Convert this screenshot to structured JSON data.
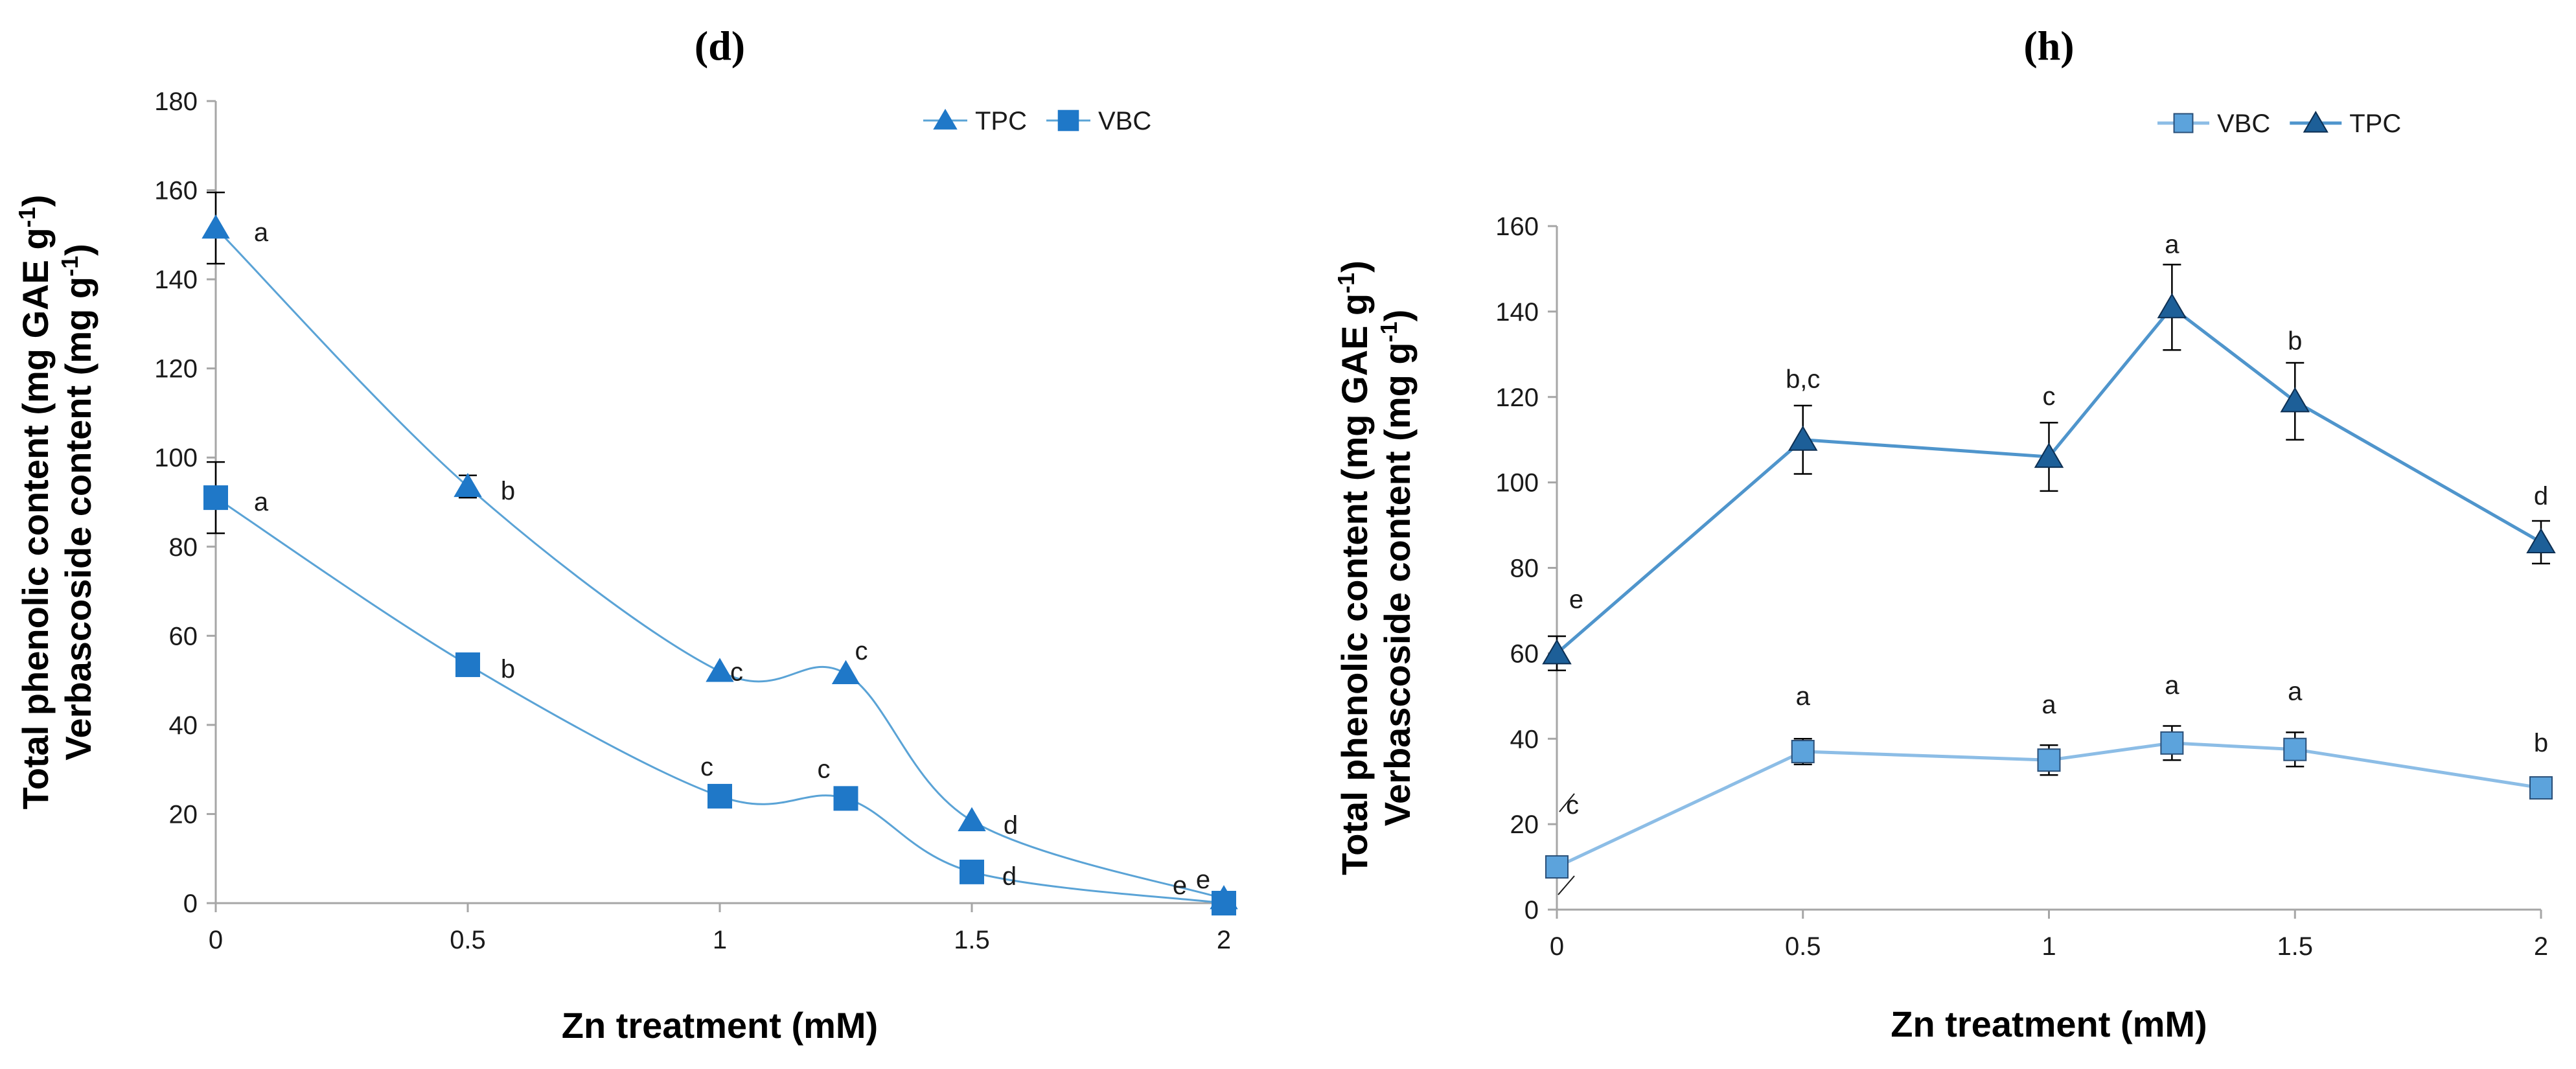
{
  "chart_data": [
    {
      "type": "line",
      "panel": "(d)",
      "xlabel": "Zn treatment (mM)",
      "ylabel_lines": [
        "Total phenolic content (mg GAE g⁻¹)",
        "Verbascoside content (mg g⁻¹)"
      ],
      "xlim": [
        0,
        2
      ],
      "ylim": [
        0,
        180
      ],
      "xticks": [
        "0",
        "0.5",
        "1",
        "1.5",
        "2"
      ],
      "yticks": [
        "0",
        "20",
        "40",
        "60",
        "80",
        "100",
        "120",
        "140",
        "160",
        "180"
      ],
      "grid": false,
      "smooth": true,
      "legend_position": "top-right",
      "legend_order": [
        "TPC",
        "VBC"
      ],
      "series": [
        {
          "name": "TPC",
          "marker": "triangle",
          "x": [
            0,
            0.5,
            1,
            1.25,
            1.5,
            2
          ],
          "values": [
            151.5,
            93.5,
            52,
            51.5,
            18.5,
            1
          ],
          "error": [
            8,
            2.5,
            0,
            0,
            0,
            0
          ],
          "letters": [
            "a",
            "b",
            "c",
            "c",
            "d",
            "e"
          ]
        },
        {
          "name": "VBC",
          "marker": "square",
          "x": [
            0,
            0.5,
            1,
            1.25,
            1.5,
            2
          ],
          "values": [
            91,
            53.5,
            24,
            23.5,
            7,
            0
          ],
          "error": [
            8,
            0,
            0,
            0,
            0,
            0
          ],
          "letters": [
            "a",
            "b",
            "c",
            "c",
            "d",
            "e"
          ]
        }
      ]
    },
    {
      "type": "line",
      "panel": "(h)",
      "xlabel": "Zn treatment (mM)",
      "ylabel_lines": [
        "Total phenolic content (mg GAE g⁻¹)",
        "Verbascoside content (mg g⁻¹)"
      ],
      "xlim": [
        0,
        2
      ],
      "ylim": [
        0,
        160
      ],
      "xticks": [
        "0",
        "0.5",
        "1",
        "1.5",
        "2"
      ],
      "yticks": [
        "0",
        "20",
        "40",
        "60",
        "80",
        "100",
        "120",
        "140",
        "160"
      ],
      "grid": false,
      "smooth": false,
      "legend_position": "top-right",
      "legend_order": [
        "VBC",
        "TPC"
      ],
      "series": [
        {
          "name": "TPC",
          "marker": "triangle",
          "x": [
            0,
            0.5,
            1,
            1.25,
            1.5,
            2
          ],
          "values": [
            60,
            110,
            106,
            141,
            119,
            86
          ],
          "error": [
            4,
            8,
            8,
            10,
            9,
            5
          ],
          "letters": [
            "e",
            "b,c",
            "c",
            "a",
            "b",
            "d"
          ]
        },
        {
          "name": "VBC",
          "marker": "square",
          "x": [
            0,
            0.5,
            1,
            1.25,
            1.5,
            2
          ],
          "values": [
            10,
            37,
            35,
            39,
            37.5,
            28.5
          ],
          "error": [
            1,
            3,
            3.5,
            4,
            4,
            1.5
          ],
          "letters": [
            "c",
            "a",
            "a",
            "a",
            "a",
            "b"
          ]
        }
      ]
    }
  ],
  "colors": {
    "d_line": "#5aa3d6",
    "d_marker": "#1f78c8",
    "h_tpc": "#4f95cc",
    "h_tpc_marker": "#1d5f98",
    "h_vbc": "#8cbde6",
    "h_vbc_marker": "#5ca3dc",
    "axis": "#a6a6a6",
    "error_bar": "#000000"
  }
}
